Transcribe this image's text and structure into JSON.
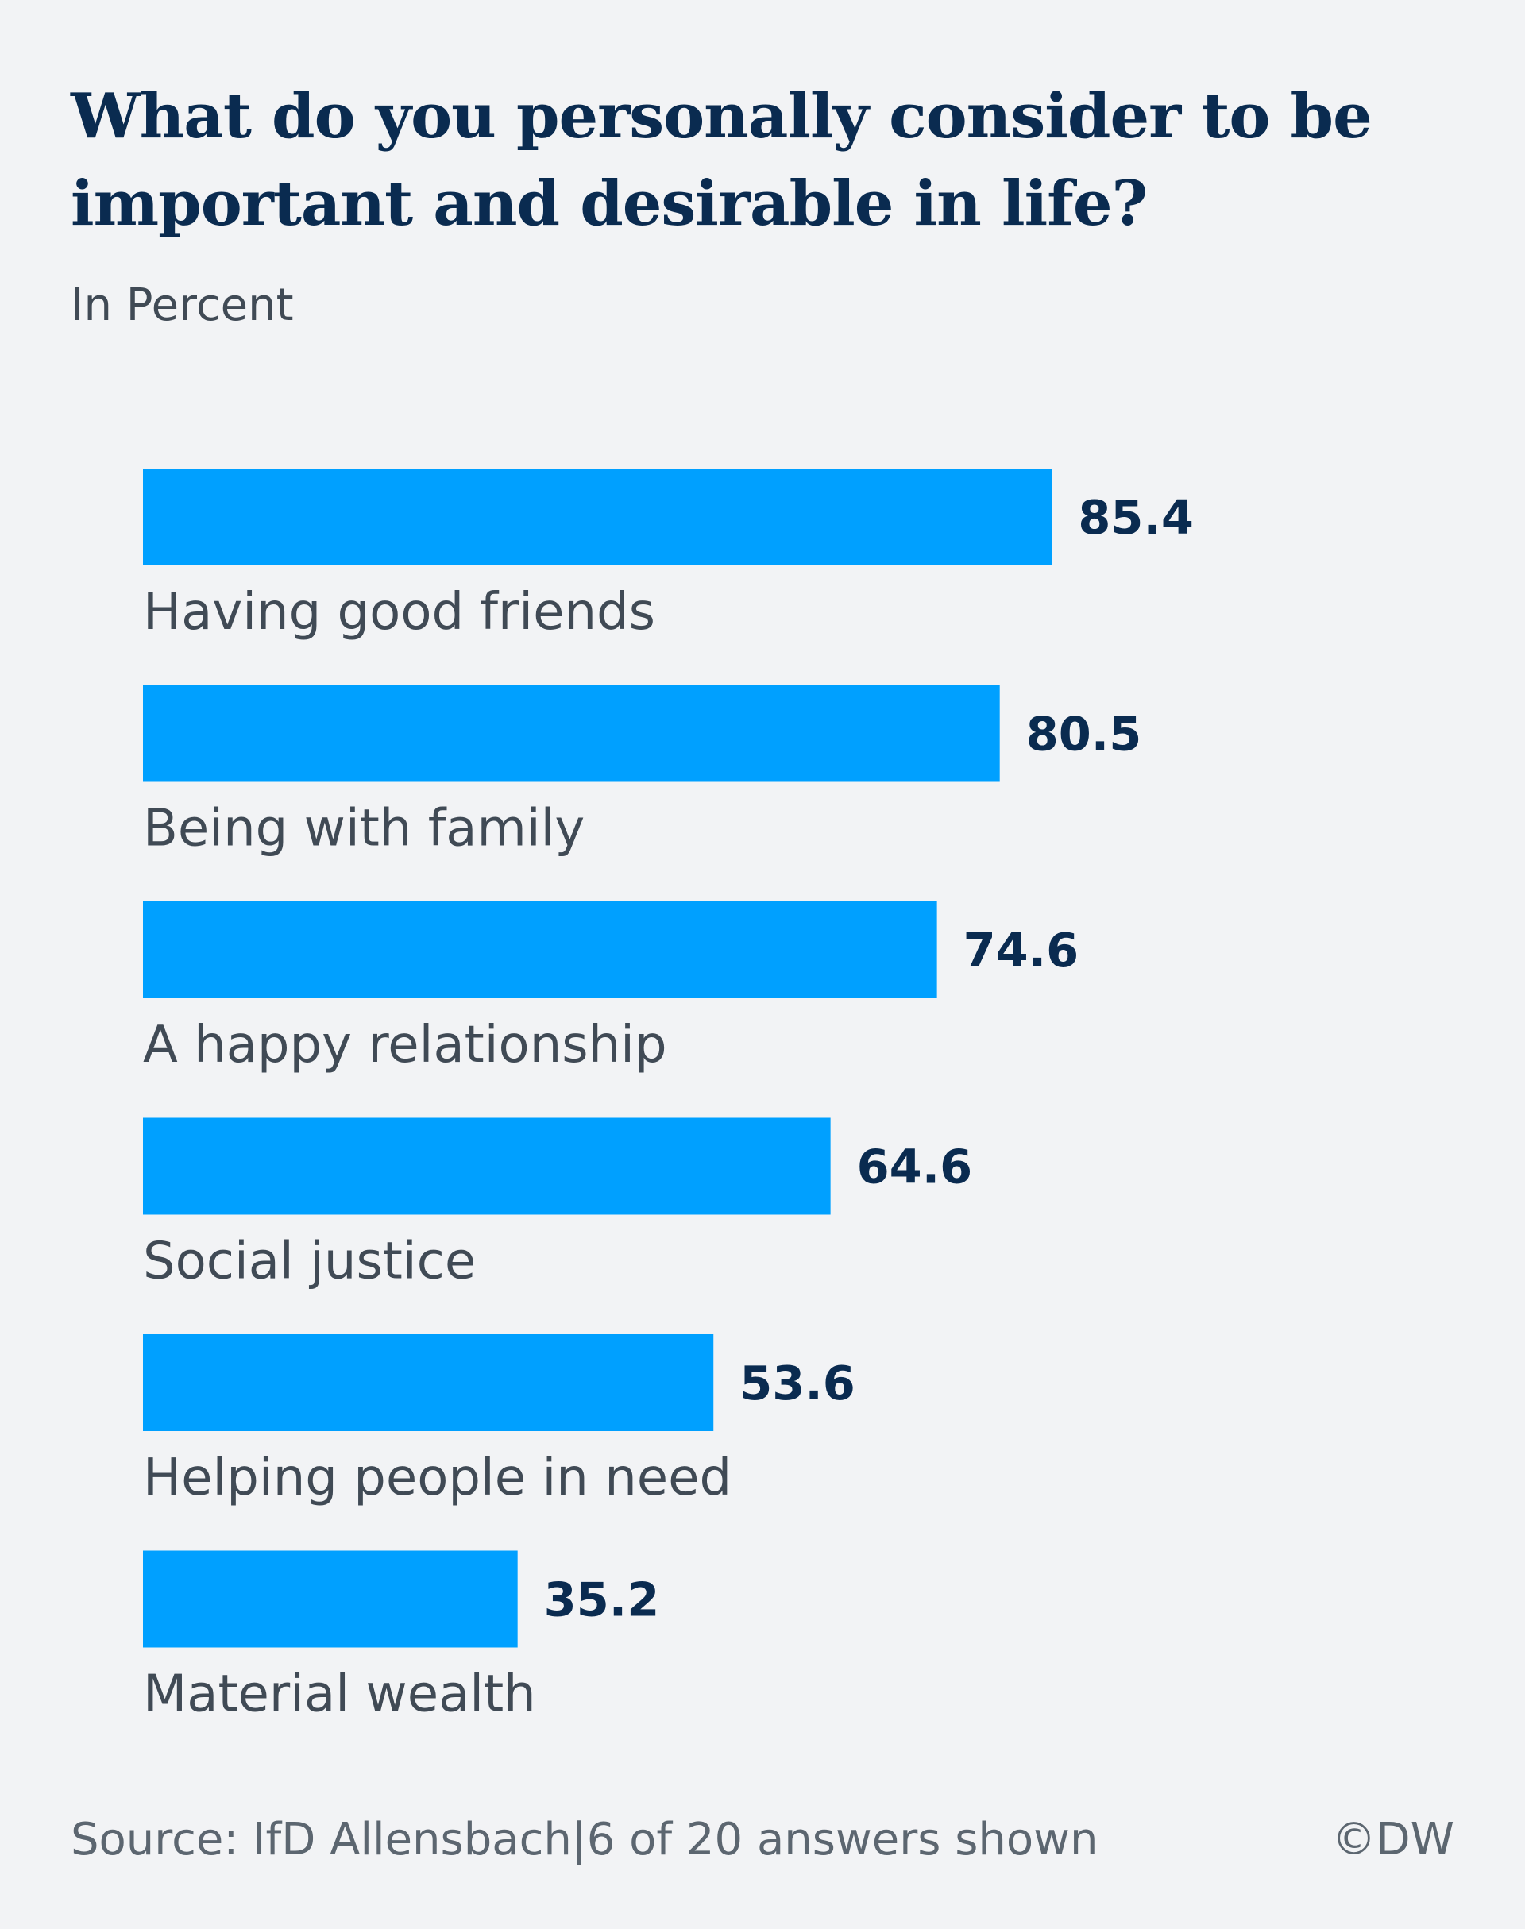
{
  "title": "What do you personally consider to be important and desirable in life?",
  "subtitle": "In Percent",
  "footer": {
    "source": "Source: IfD Allensbach|6 of 20 answers shown",
    "credit": "©DW"
  },
  "colors": {
    "bar": "#00a0ff",
    "title": "#0a2b50",
    "background": "#f2f3f5"
  },
  "chart_data": {
    "type": "bar",
    "orientation": "horizontal",
    "title": "What do you personally consider to be important and desirable in life?",
    "subtitle": "In Percent",
    "categories": [
      "Having good friends",
      "Being with family",
      "A happy relationship",
      "Social justice",
      "Helping people in need",
      "Material wealth"
    ],
    "values": [
      85.4,
      80.5,
      74.6,
      64.6,
      53.6,
      35.2
    ],
    "value_labels": [
      "85.4",
      "80.5",
      "74.6",
      "64.6",
      "53.6",
      "35.2"
    ],
    "xlim": [
      0,
      100
    ],
    "grid": false,
    "legend": "none"
  }
}
